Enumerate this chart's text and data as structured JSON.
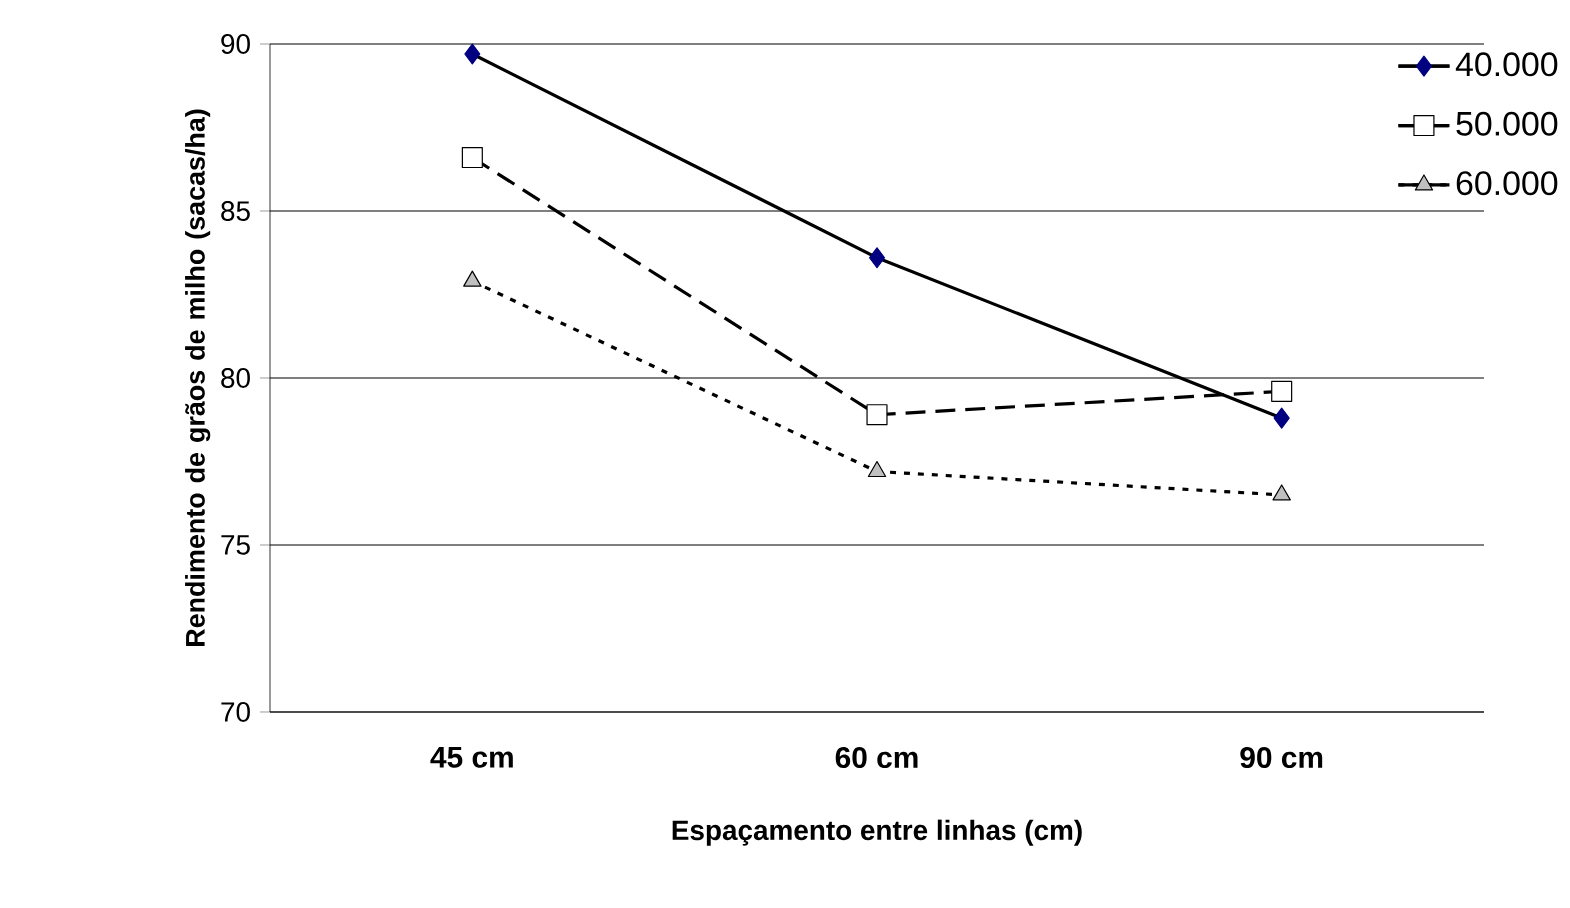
{
  "chart_data": {
    "type": "line",
    "xlabel": "Espaçamento entre linhas (cm)",
    "ylabel": "Rendimento de grãos de milho (sacas/ha)",
    "categories": [
      "45 cm",
      "60 cm",
      "90 cm"
    ],
    "ylim": [
      70,
      90
    ],
    "yticks": [
      70,
      75,
      80,
      85,
      90
    ],
    "grid": "y",
    "legend": "top right",
    "series": [
      {
        "name": "40.000",
        "color": "#000080",
        "marker": "diamond",
        "line_style": "solid",
        "values": [
          89.7,
          83.6,
          78.8
        ]
      },
      {
        "name": "50.000",
        "color": "#ffffff",
        "marker": "square",
        "line_style": "dashed",
        "values": [
          86.6,
          78.9,
          79.6
        ]
      },
      {
        "name": "60.000",
        "color": "#c0c0c0",
        "marker": "triangle",
        "line_style": "dotted",
        "values": [
          82.9,
          77.2,
          76.5
        ]
      }
    ]
  }
}
